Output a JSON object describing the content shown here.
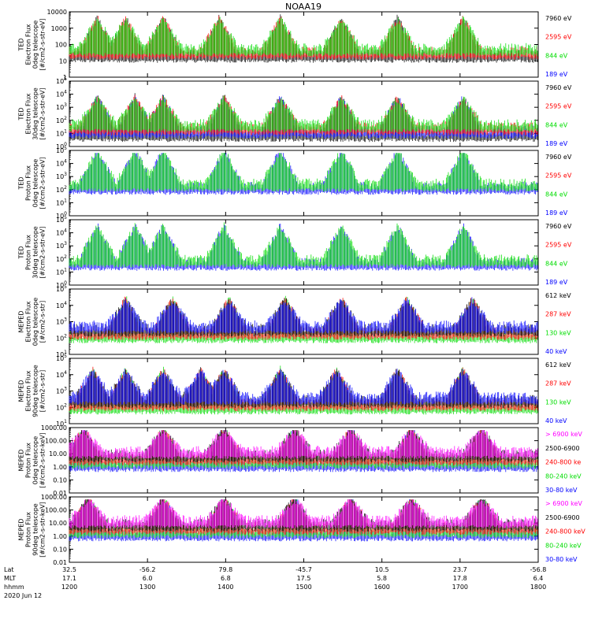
{
  "chart_data": {
    "type": "line",
    "title": "NOAA19",
    "x_ticks": [
      "1200",
      "1300",
      "1400",
      "1500",
      "1600",
      "1700",
      "1800"
    ],
    "footer": {
      "rows": [
        {
          "label": "Lat",
          "values": [
            "32.5",
            "-56.2",
            "79.8",
            "-45.7",
            "10.5",
            "23.7",
            "-56.8"
          ]
        },
        {
          "label": "MLT",
          "values": [
            "17.1",
            "6.0",
            "6.8",
            "17.5",
            "5.8",
            "17.8",
            "6.4"
          ]
        },
        {
          "label": "hhmm",
          "values": [
            "1200",
            "1300",
            "1400",
            "1500",
            "1600",
            "1700",
            "1800"
          ]
        }
      ],
      "date": "2020 Jun 12"
    },
    "panels": [
      {
        "ylabel": [
          "TED",
          "Electron Flux",
          "0deg telescope",
          "[#/cm2-s-str-eV]"
        ],
        "ytick_labels": [
          "1",
          "10",
          "100",
          "1000",
          "10000"
        ],
        "log_range": [
          0,
          4
        ],
        "legend": [
          {
            "text": "7960 eV",
            "color": "#000000"
          },
          {
            "text": "2595 eV",
            "color": "#ff0000"
          },
          {
            "text": "844 eV",
            "color": "#00dd00"
          },
          {
            "text": "189 eV",
            "color": "#0000ff"
          }
        ],
        "bursts": [
          0.06,
          0.12,
          0.2,
          0.32,
          0.45,
          0.58,
          0.7,
          0.84
        ],
        "layers": [
          "k",
          "r",
          "g"
        ],
        "base": 0.3
      },
      {
        "ylabel": [
          "TED",
          "Electron Flux",
          "30deg telescope",
          "[#/cm2-s-str-eV]"
        ],
        "ytick_labels": [
          "10^0",
          "10^1",
          "10^2",
          "10^3",
          "10^4",
          "10^5"
        ],
        "log_range": [
          0,
          5
        ],
        "legend": [
          {
            "text": "7960 eV",
            "color": "#000000"
          },
          {
            "text": "2595 eV",
            "color": "#ff0000"
          },
          {
            "text": "844 eV",
            "color": "#00dd00"
          },
          {
            "text": "189 eV",
            "color": "#0000ff"
          }
        ],
        "bursts": [
          0.06,
          0.14,
          0.2,
          0.33,
          0.45,
          0.58,
          0.7,
          0.84
        ],
        "layers": [
          "k",
          "b",
          "r",
          "g"
        ],
        "base": 0.15
      },
      {
        "ylabel": [
          "TED",
          "Proton Flux",
          "0deg telescope",
          "[#/cm2-s-str-eV]"
        ],
        "ytick_labels": [
          "10^0",
          "10^1",
          "10^2",
          "10^3",
          "10^4",
          "10^5"
        ],
        "log_range": [
          0,
          5
        ],
        "legend": [
          {
            "text": "7960 eV",
            "color": "#000000"
          },
          {
            "text": "2595 eV",
            "color": "#ff0000"
          },
          {
            "text": "844 eV",
            "color": "#00dd00"
          },
          {
            "text": "189 eV",
            "color": "#0000ff"
          }
        ],
        "bursts": [
          0.06,
          0.14,
          0.2,
          0.33,
          0.45,
          0.58,
          0.7,
          0.84
        ],
        "layers": [
          "b",
          "g"
        ],
        "base": 0.4
      },
      {
        "ylabel": [
          "TED",
          "Proton Flux",
          "30deg telescope",
          "[#/cm2-s-str-eV]"
        ],
        "ytick_labels": [
          "10^0",
          "10^1",
          "10^2",
          "10^3",
          "10^4",
          "10^5"
        ],
        "log_range": [
          0,
          5
        ],
        "legend": [
          {
            "text": "7960 eV",
            "color": "#000000"
          },
          {
            "text": "2595 eV",
            "color": "#ff0000"
          },
          {
            "text": "844 eV",
            "color": "#00dd00"
          },
          {
            "text": "189 eV",
            "color": "#0000ff"
          }
        ],
        "bursts": [
          0.06,
          0.14,
          0.2,
          0.33,
          0.45,
          0.58,
          0.7,
          0.84
        ],
        "layers": [
          "b",
          "g"
        ],
        "base": 0.3
      },
      {
        "ylabel": [
          "MEPED",
          "Electron Flux",
          "0deg telescope",
          "[#/cm2-s-str]"
        ],
        "ytick_labels": [
          "10^1",
          "10^2",
          "10^3",
          "10^4",
          "10^5"
        ],
        "log_range": [
          1,
          5
        ],
        "legend": [
          {
            "text": "612 keV",
            "color": "#000000"
          },
          {
            "text": "287 keV",
            "color": "#ff0000"
          },
          {
            "text": "130 keV",
            "color": "#00dd00"
          },
          {
            "text": "40 keV",
            "color": "#0000ff"
          }
        ],
        "bursts": [
          0.12,
          0.22,
          0.34,
          0.46,
          0.58,
          0.72,
          0.86
        ],
        "layers": [
          "g",
          "r",
          "k",
          "b"
        ],
        "base": 0.25
      },
      {
        "ylabel": [
          "MEPED",
          "Electron Flux",
          "90deg telescope",
          "[#/cm2-s-str]"
        ],
        "ytick_labels": [
          "10^1",
          "10^2",
          "10^3",
          "10^4",
          "10^5"
        ],
        "log_range": [
          1,
          5
        ],
        "legend": [
          {
            "text": "612 keV",
            "color": "#000000"
          },
          {
            "text": "287 keV",
            "color": "#ff0000"
          },
          {
            "text": "130 keV",
            "color": "#00dd00"
          },
          {
            "text": "40 keV",
            "color": "#0000ff"
          }
        ],
        "bursts": [
          0.05,
          0.12,
          0.2,
          0.28,
          0.33,
          0.45,
          0.57,
          0.7,
          0.84
        ],
        "layers": [
          "g",
          "r",
          "k",
          "b"
        ],
        "base": 0.22
      },
      {
        "ylabel": [
          "MEPED",
          "Proton Flux",
          "0deg telescope",
          "[#/cm2-s-str-keV]"
        ],
        "ytick_labels": [
          "0.01",
          "0.10",
          "1.00",
          "10.00",
          "100.00",
          "1000.00"
        ],
        "log_range": [
          -2,
          3
        ],
        "legend": [
          {
            "text": "> 6900 keV",
            "color": "#ff00ff"
          },
          {
            "text": "2500-6900",
            "color": "#000000"
          },
          {
            "text": "240-800 ke",
            "color": "#ff0000"
          },
          {
            "text": "80-240 keV",
            "color": "#00dd00"
          },
          {
            "text": "30-80 keV",
            "color": "#0000ff"
          }
        ],
        "bursts": [
          0.03,
          0.2,
          0.33,
          0.48,
          0.6,
          0.73,
          0.88
        ],
        "layers": [
          "b",
          "g",
          "r",
          "k",
          "m"
        ],
        "base": 0.4
      },
      {
        "ylabel": [
          "MEPED",
          "Proton Flux",
          "90deg telescope",
          "[#/cm2-s-str-keV]"
        ],
        "ytick_labels": [
          "0.01",
          "0.10",
          "1.00",
          "10.00",
          "100.00",
          "1000.00"
        ],
        "log_range": [
          -2,
          3
        ],
        "legend": [
          {
            "text": "> 6900 keV",
            "color": "#ff00ff"
          },
          {
            "text": "2500-6900",
            "color": "#000000"
          },
          {
            "text": "240-800 keV",
            "color": "#ff0000"
          },
          {
            "text": "80-240 keV",
            "color": "#00dd00"
          },
          {
            "text": "30-80 keV",
            "color": "#0000ff"
          }
        ],
        "bursts": [
          0.04,
          0.2,
          0.33,
          0.48,
          0.6,
          0.73,
          0.88
        ],
        "layers": [
          "b",
          "g",
          "r",
          "k",
          "m"
        ],
        "base": 0.4
      }
    ]
  }
}
